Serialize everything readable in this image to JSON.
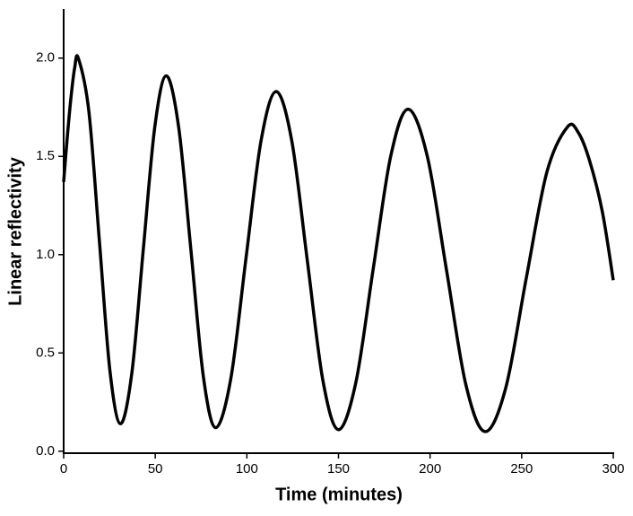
{
  "chart_data": {
    "type": "line",
    "x_label": "Time (minutes)",
    "y_label": "Linear reflectivity",
    "xlim": [
      0,
      300
    ],
    "ylim": [
      -0.01,
      2.25
    ],
    "xticks": [
      0,
      50,
      100,
      150,
      200,
      250,
      300
    ],
    "yticks": [
      {
        "value": 0,
        "label": "0.0"
      },
      0.5,
      {
        "value": 1,
        "label": "1.0"
      },
      1.5,
      {
        "value": 2,
        "label": "2.0"
      }
    ],
    "grid": false,
    "x": [
      0,
      2,
      4,
      6,
      8,
      13.75,
      19.5,
      25.25,
      31,
      37.25,
      43.5,
      49.75,
      56,
      62.75,
      69.5,
      76.25,
      83,
      91.25,
      99.5,
      107.75,
      116,
      124.5,
      133,
      141.5,
      150,
      159.5,
      169,
      178.5,
      188,
      198.5,
      209,
      219.5,
      230,
      241.25,
      252.5,
      263.75,
      275,
      281,
      287,
      294,
      300
    ],
    "series": [
      {
        "color": "#000000",
        "values": [
          1.37,
          1.6,
          1.8,
          1.95,
          2.0,
          1.73,
          1.07,
          0.41,
          0.14,
          0.4,
          1.03,
          1.65,
          1.91,
          1.65,
          1.02,
          0.38,
          0.12,
          0.37,
          0.98,
          1.58,
          1.83,
          1.58,
          0.97,
          0.36,
          0.11,
          0.35,
          0.93,
          1.5,
          1.74,
          1.5,
          0.92,
          0.34,
          0.1,
          0.32,
          0.88,
          1.42,
          1.65,
          1.62,
          1.48,
          1.22,
          0.87
        ]
      }
    ]
  }
}
